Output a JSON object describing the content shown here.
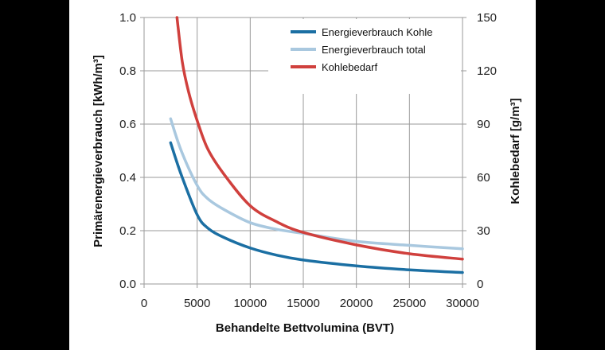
{
  "chart_data": {
    "type": "line",
    "xlabel": "Behandelte Bettvolumina (BVT)",
    "ylabel": "Primärenergieverbrauch [kWh/m³]",
    "y2label": "Kohlebedarf [g/m³]",
    "xlim": [
      0,
      30000
    ],
    "ylim": [
      0,
      1.0
    ],
    "y2lim": [
      0,
      150
    ],
    "xticks": [
      "0",
      "5000",
      "10000",
      "15000",
      "20000",
      "25000",
      "30000"
    ],
    "yticks": [
      "0.0",
      "0.2",
      "0.4",
      "0.6",
      "0.8",
      "1.0"
    ],
    "y2ticks": [
      "0",
      "30",
      "60",
      "90",
      "120",
      "150"
    ],
    "grid": true,
    "legend_position": "top-right",
    "series": [
      {
        "name": "Energieverbrauch Kohle",
        "axis": "left",
        "color": "#1b6fa3",
        "x": [
          2500,
          3500,
          5000,
          6000,
          7500,
          10000,
          12500,
          15000,
          20000,
          25000,
          30000
        ],
        "y": [
          0.53,
          0.41,
          0.26,
          0.21,
          0.175,
          0.135,
          0.108,
          0.09,
          0.068,
          0.053,
          0.043
        ]
      },
      {
        "name": "Energieverbrauch total",
        "axis": "left",
        "color": "#a9c8df",
        "x": [
          2500,
          3500,
          5000,
          6000,
          7500,
          10000,
          12500,
          15000,
          20000,
          25000,
          30000
        ],
        "y": [
          0.62,
          0.5,
          0.37,
          0.32,
          0.28,
          0.23,
          0.205,
          0.19,
          0.16,
          0.145,
          0.132
        ]
      },
      {
        "name": "Kohlebedarf",
        "axis": "right",
        "color": "#d0403d",
        "x": [
          3100,
          3600,
          4200,
          5000,
          6000,
          7500,
          10000,
          12500,
          15000,
          20000,
          25000,
          30000
        ],
        "y": [
          150,
          125,
          108,
          92,
          76,
          62,
          44,
          35,
          29,
          22,
          17,
          14
        ]
      }
    ]
  }
}
